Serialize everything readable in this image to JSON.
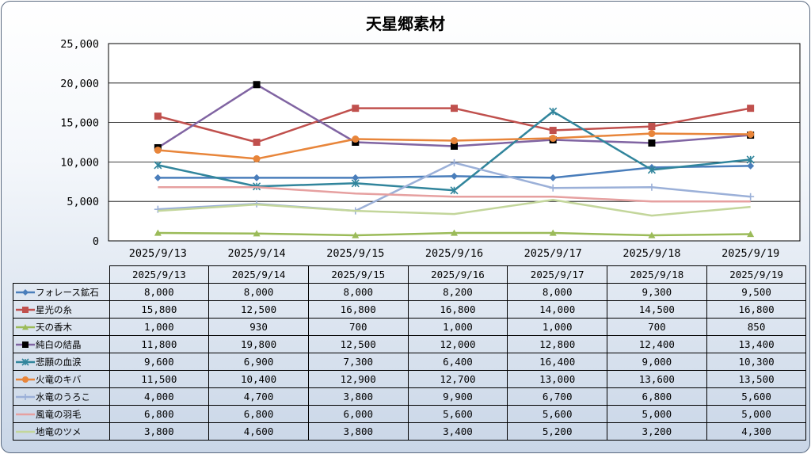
{
  "chart_data": {
    "type": "line",
    "title": "天星郷素材",
    "categories": [
      "2025/9/13",
      "2025/9/14",
      "2025/9/15",
      "2025/9/16",
      "2025/9/17",
      "2025/9/18",
      "2025/9/19"
    ],
    "ylim": [
      0,
      25000
    ],
    "yticks": [
      "0",
      "5,000",
      "10,000",
      "15,000",
      "20,000",
      "25,000"
    ],
    "ytick_values": [
      0,
      5000,
      10000,
      15000,
      20000,
      25000
    ],
    "grid": true,
    "legend": "data-table",
    "series": [
      {
        "name": "フォレース鉱石",
        "color": "#4a7ebb",
        "marker": "diamond",
        "values": [
          8000,
          8000,
          8000,
          8200,
          8000,
          9300,
          9500
        ],
        "labels": [
          "8,000",
          "8,000",
          "8,000",
          "8,200",
          "8,000",
          "9,300",
          "9,500"
        ]
      },
      {
        "name": "星光の糸",
        "color": "#c0504d",
        "marker": "square",
        "values": [
          15800,
          12500,
          16800,
          16800,
          14000,
          14500,
          16800
        ],
        "labels": [
          "15,800",
          "12,500",
          "16,800",
          "16,800",
          "14,000",
          "14,500",
          "16,800"
        ]
      },
      {
        "name": "天の香木",
        "color": "#9bbb59",
        "marker": "triangle",
        "values": [
          1000,
          930,
          700,
          1000,
          1000,
          700,
          850
        ],
        "labels": [
          "1,000",
          "930",
          "700",
          "1,000",
          "1,000",
          "700",
          "850"
        ]
      },
      {
        "name": "純白の結晶",
        "color": "#8064a2",
        "marker": "blacksquare",
        "values": [
          11800,
          19800,
          12500,
          12000,
          12800,
          12400,
          13400
        ],
        "labels": [
          "11,800",
          "19,800",
          "12,500",
          "12,000",
          "12,800",
          "12,400",
          "13,400"
        ]
      },
      {
        "name": "悲願の血涙",
        "color": "#31859c",
        "marker": "star",
        "values": [
          9600,
          6900,
          7300,
          6400,
          16400,
          9000,
          10300
        ],
        "labels": [
          "9,600",
          "6,900",
          "7,300",
          "6,400",
          "16,400",
          "9,000",
          "10,300"
        ]
      },
      {
        "name": "火竜のキバ",
        "color": "#e8853a",
        "marker": "circle",
        "values": [
          11500,
          10400,
          12900,
          12700,
          13000,
          13600,
          13500
        ],
        "labels": [
          "11,500",
          "10,400",
          "12,900",
          "12,700",
          "13,000",
          "13,600",
          "13,500"
        ]
      },
      {
        "name": "水竜のうろこ",
        "color": "#9bb0d8",
        "marker": "plus",
        "values": [
          4000,
          4700,
          3800,
          9900,
          6700,
          6800,
          5600
        ],
        "labels": [
          "4,000",
          "4,700",
          "3,800",
          "9,900",
          "6,700",
          "6,800",
          "5,600"
        ]
      },
      {
        "name": "風竜の羽毛",
        "color": "#e6a0a0",
        "marker": "none",
        "values": [
          6800,
          6800,
          6000,
          5600,
          5600,
          5000,
          5000
        ],
        "labels": [
          "6,800",
          "6,800",
          "6,000",
          "5,600",
          "5,600",
          "5,000",
          "5,000"
        ]
      },
      {
        "name": "地竜のツメ",
        "color": "#c3d69b",
        "marker": "none",
        "values": [
          3800,
          4600,
          3800,
          3400,
          5200,
          3200,
          4300
        ],
        "labels": [
          "3,800",
          "4,600",
          "3,800",
          "3,400",
          "5,200",
          "3,200",
          "4,300"
        ]
      }
    ]
  }
}
